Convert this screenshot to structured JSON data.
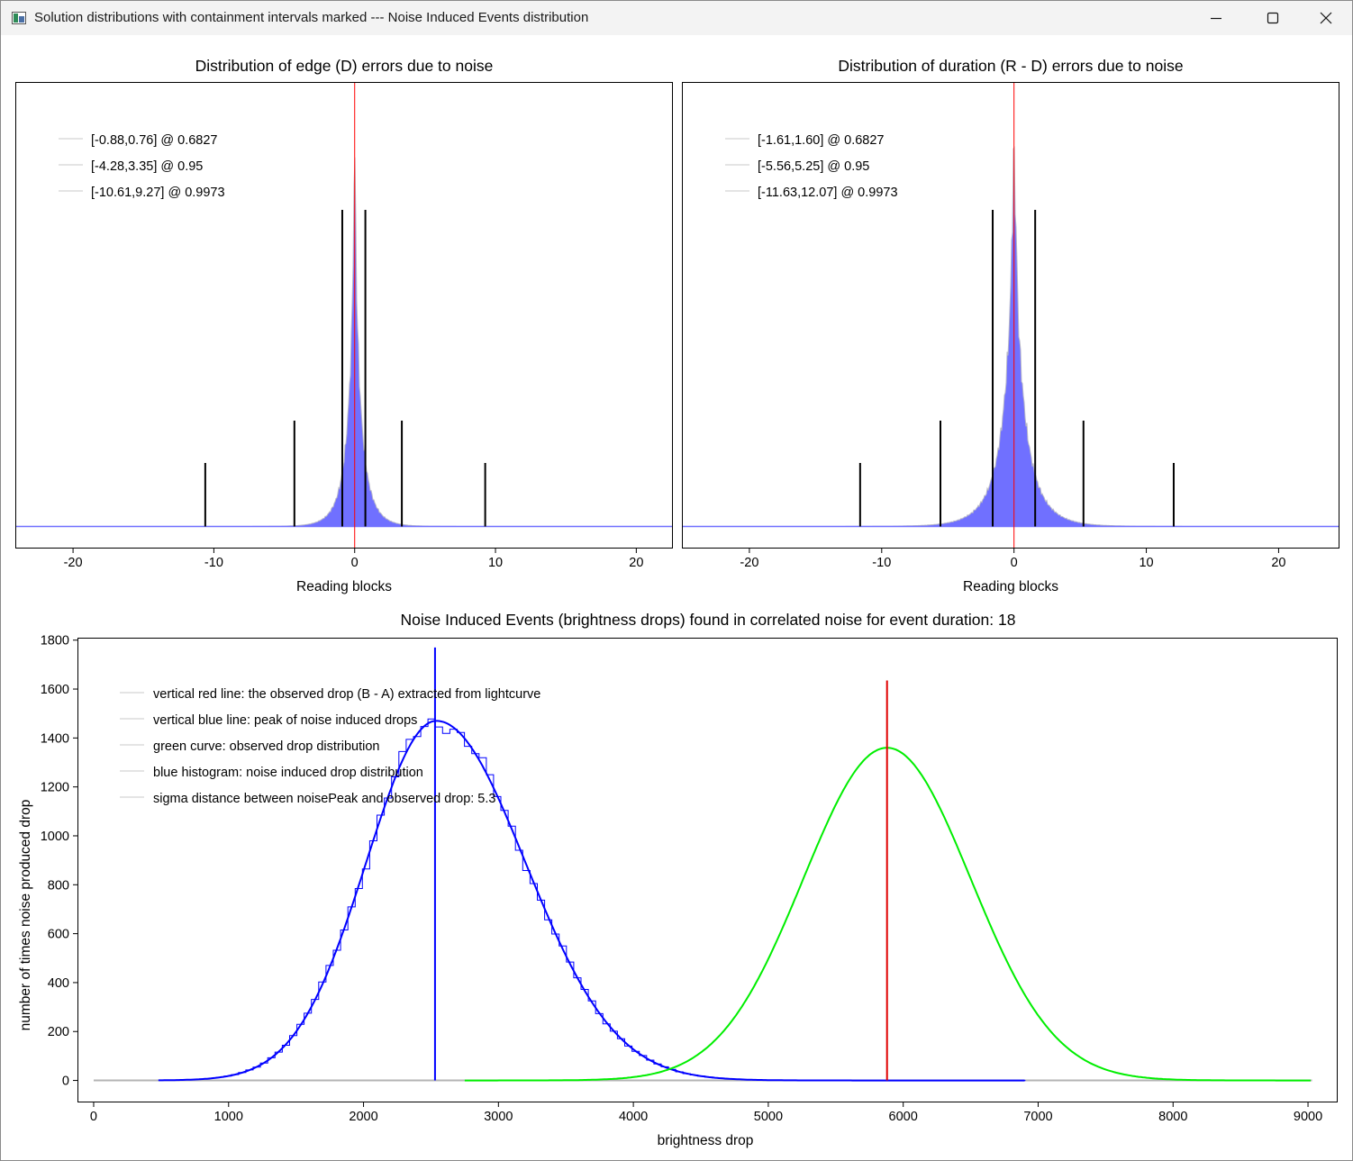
{
  "window": {
    "title": "Solution distributions with containment intervals marked --- Noise Induced Events distribution",
    "controls": [
      "minimize",
      "maximize",
      "close"
    ]
  },
  "colors": {
    "histogram_fill": "#7070ff",
    "histogram_edge": "#b8b8c8",
    "center_line": "#ff0000",
    "interval_lines": "#000000",
    "noise_blue": "#0000ff",
    "observed_red": "#e00000",
    "observed_green": "#00ee00",
    "baseline_gray": "#b4b4b4"
  },
  "chart_data": [
    {
      "type": "bar",
      "title": "Distribution of edge (D) errors due to noise",
      "xlabel": "Reading blocks",
      "ylabel": "",
      "xlim": [
        -24.1,
        22.6
      ],
      "xticks": [
        -20,
        -10,
        0,
        10,
        20
      ],
      "distribution": "laplace-like histogram centered at 0",
      "center": 0,
      "legend_placement": "top-left",
      "legend": [
        "[-0.88,0.76] @ 0.6827",
        "[-4.28,3.35] @ 0.95",
        "[-10.61,9.27] @ 0.9973"
      ],
      "intervals": [
        {
          "level": 0.6827,
          "low": -0.88,
          "high": 0.76
        },
        {
          "level": 0.95,
          "low": -4.28,
          "high": 3.35
        },
        {
          "level": 0.9973,
          "low": -10.61,
          "high": 9.27
        }
      ]
    },
    {
      "type": "bar",
      "title": "Distribution of duration (R - D) errors due to noise",
      "xlabel": "Reading blocks",
      "ylabel": "",
      "xlim": [
        -25.1,
        24.6
      ],
      "xticks": [
        -20,
        -10,
        0,
        10,
        20
      ],
      "distribution": "laplace-like histogram centered at 0",
      "center": 0,
      "legend_placement": "top-left",
      "legend": [
        "[-1.61,1.60] @ 0.6827",
        "[-5.56,5.25] @ 0.95",
        "[-11.63,12.07] @ 0.9973"
      ],
      "intervals": [
        {
          "level": 0.6827,
          "low": -1.61,
          "high": 1.6
        },
        {
          "level": 0.95,
          "low": -5.56,
          "high": 5.25
        },
        {
          "level": 0.9973,
          "low": -11.63,
          "high": 12.07
        }
      ]
    },
    {
      "type": "line",
      "title": "Noise Induced Events (brightness drops) found in correlated noise for event duration: 18",
      "xlabel": "brightness drop",
      "ylabel": "number of times noise produced drop",
      "xlim": [
        -120,
        9220
      ],
      "ylim": [
        -90,
        1810
      ],
      "xticks": [
        0,
        1000,
        2000,
        3000,
        4000,
        5000,
        6000,
        7000,
        8000,
        9000
      ],
      "yticks": [
        0,
        200,
        400,
        600,
        800,
        1000,
        1200,
        1400,
        1600,
        1800
      ],
      "legend_placement": "top-left",
      "legend": [
        "vertical red line: the observed drop (B - A) extracted from lightcurve",
        "vertical blue line: peak of noise induced drops",
        "green curve: observed drop distribution",
        "blue histogram: noise induced drop distribution",
        "sigma distance between noisePeak and observed drop: 5.3"
      ],
      "series": [
        {
          "name": "noise induced drop distribution",
          "kind": "histogram+fit",
          "peak_x": 2540,
          "peak_y": 1470,
          "sigma_left": 520,
          "sigma_right": 660,
          "x_range": [
            480,
            6900
          ]
        },
        {
          "name": "observed drop distribution",
          "kind": "gaussian",
          "peak_x": 5880,
          "peak_y": 1360,
          "sigma": 620,
          "x_range": [
            2750,
            9030
          ]
        }
      ],
      "vlines": [
        {
          "name": "peak of noise induced drops",
          "x": 2530,
          "y_top": 1770
        },
        {
          "name": "observed drop (B - A)",
          "x": 5880,
          "y_top": 1635
        }
      ],
      "baseline": {
        "x_range": [
          0,
          9030
        ],
        "y": 0
      }
    }
  ]
}
